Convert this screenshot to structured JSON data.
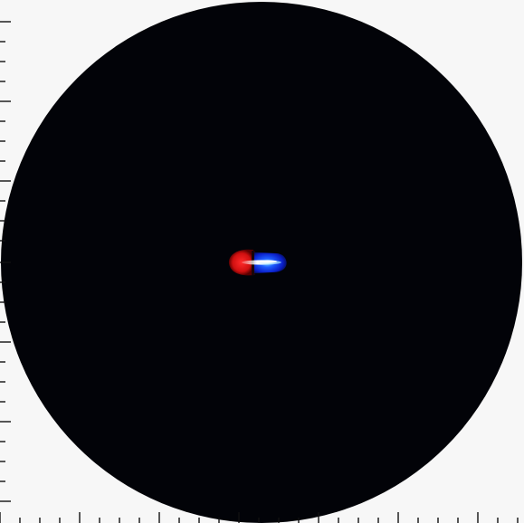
{
  "colors": {
    "background": "#f7f7f7",
    "disc": "#020308",
    "tick": "#111111",
    "red_lobe": "#e01414",
    "blue_lobe": "#1030e8",
    "core": "#ffffff"
  },
  "icons": {
    "axis_ticks": "ruler-ticks",
    "object": "bipolar-blob"
  }
}
